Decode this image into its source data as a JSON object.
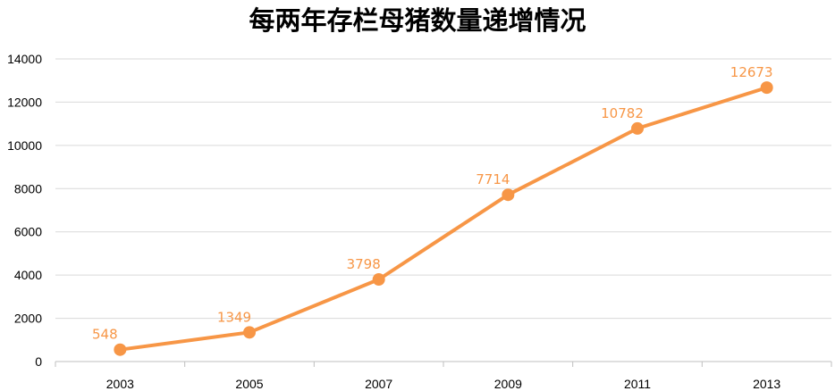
{
  "chart_data": {
    "type": "line",
    "title": "每两年存栏母猪数量递增情况",
    "xlabel": "",
    "ylabel": "",
    "categories": [
      "2003",
      "2005",
      "2007",
      "2009",
      "2011",
      "2013"
    ],
    "series": [
      {
        "values": [
          548,
          1349,
          3798,
          7714,
          10782,
          12673
        ],
        "data_labels": [
          "548",
          "1349",
          "3798",
          "7714",
          "10782",
          "12673"
        ],
        "color": "#f79646"
      }
    ],
    "ylim": [
      0,
      14000
    ],
    "yticks": [
      "0",
      "2000",
      "4000",
      "6000",
      "8000",
      "10000",
      "12000",
      "14000"
    ],
    "grid": true,
    "legend": "none"
  }
}
